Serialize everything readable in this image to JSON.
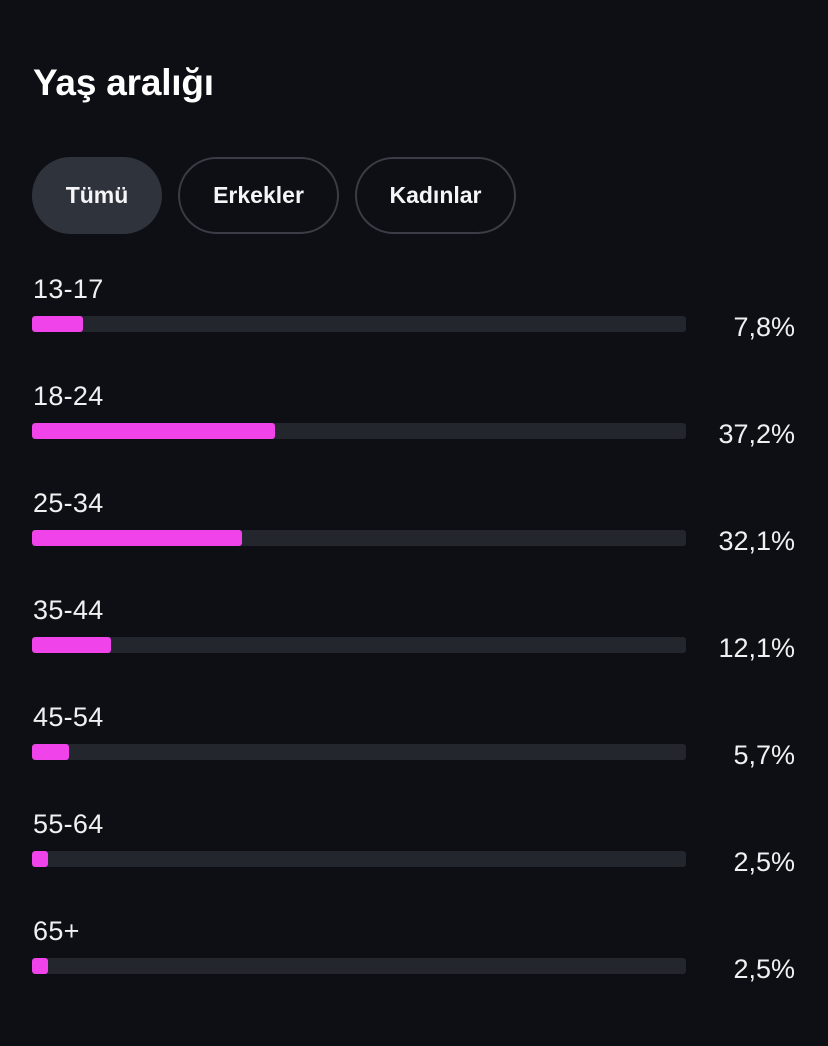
{
  "title": "Yaş aralığı",
  "filters": [
    {
      "label": "Tümü",
      "active": true
    },
    {
      "label": "Erkekler",
      "active": false
    },
    {
      "label": "Kadınlar",
      "active": false
    }
  ],
  "colors": {
    "background": "#0d0f14",
    "bar_fill": "#f044ea",
    "bar_track": "#24262d",
    "chip_active": "#2f333c"
  },
  "chart_data": {
    "type": "bar",
    "orientation": "horizontal",
    "categories": [
      "13-17",
      "18-24",
      "25-34",
      "35-44",
      "45-54",
      "55-64",
      "65+"
    ],
    "values": [
      7.8,
      37.2,
      32.1,
      12.1,
      5.7,
      2.5,
      2.5
    ],
    "value_labels": [
      "7,8%",
      "37,2%",
      "32,1%",
      "12,1%",
      "5,7%",
      "2,5%",
      "2,5%"
    ],
    "xlim": [
      0,
      100
    ]
  }
}
